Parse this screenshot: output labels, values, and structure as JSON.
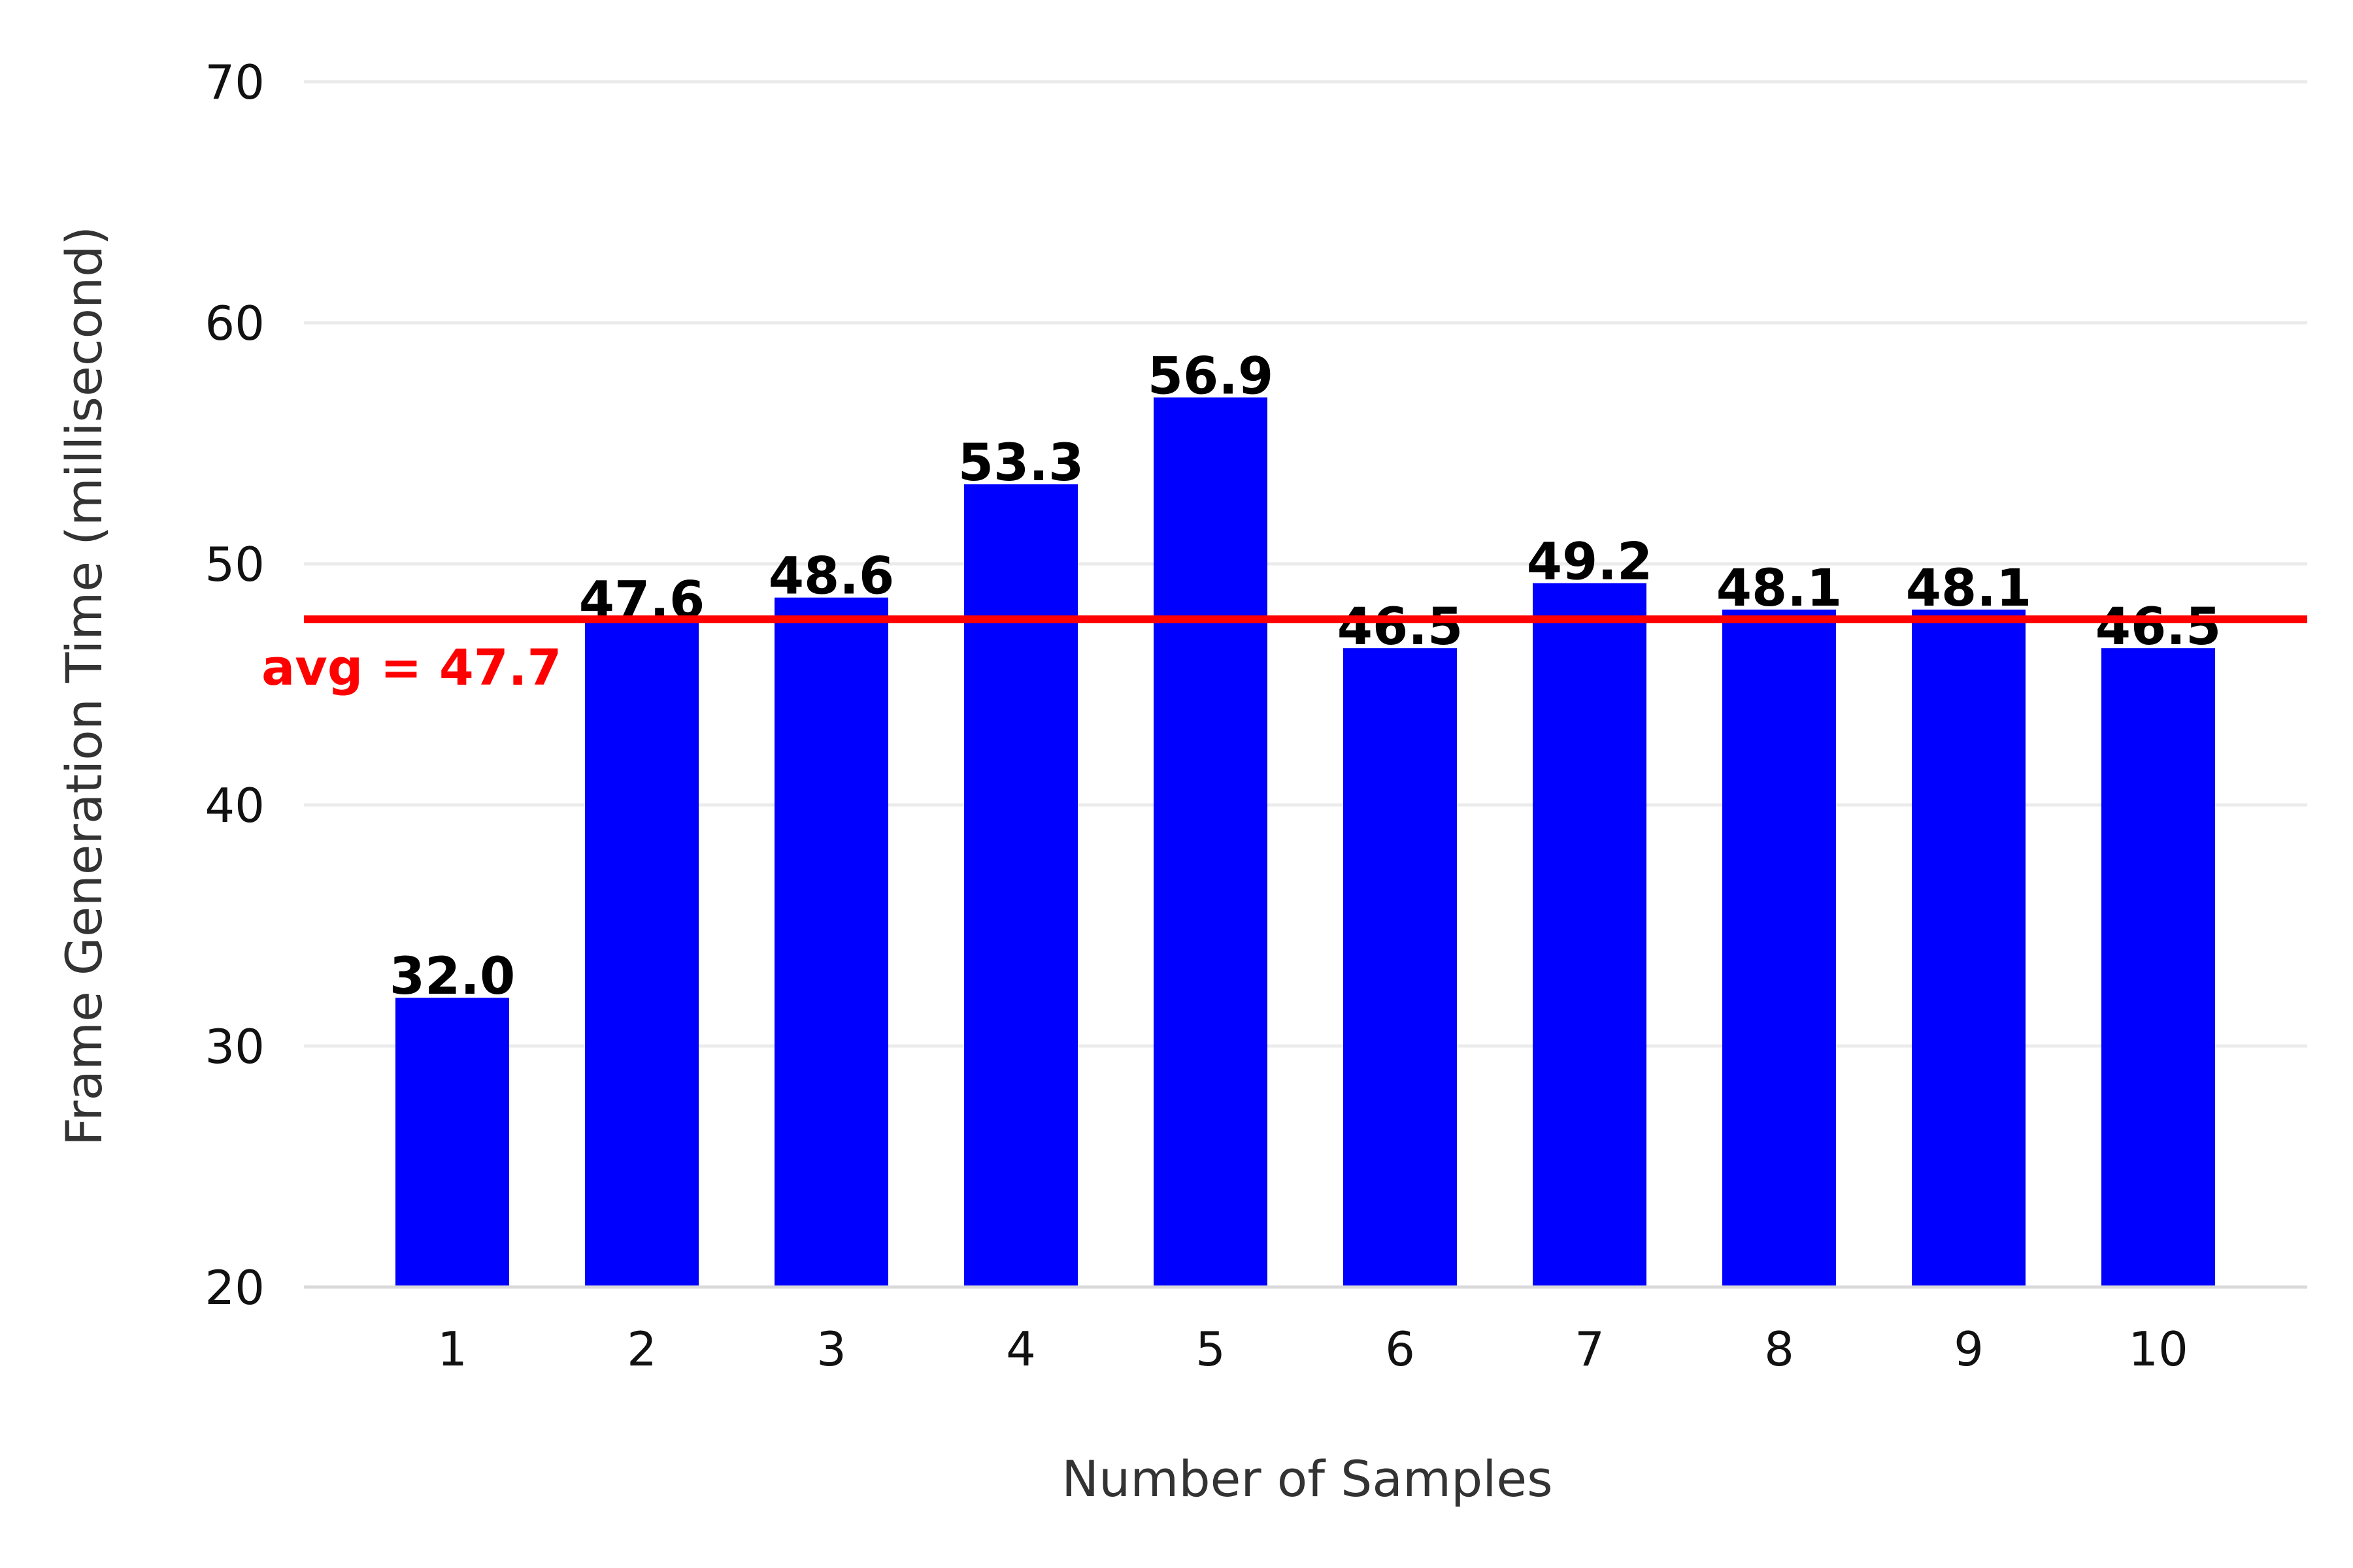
{
  "chart_data": {
    "type": "bar",
    "xlabel": "Number of Samples",
    "ylabel": "Frame Generation Time (millisecond)",
    "categories": [
      "1",
      "2",
      "3",
      "4",
      "5",
      "6",
      "7",
      "8",
      "9",
      "10"
    ],
    "values": [
      32.0,
      47.6,
      48.6,
      53.3,
      56.9,
      46.5,
      49.2,
      48.1,
      48.1,
      46.5
    ],
    "data_labels": [
      "32.0",
      "47.6",
      "48.6",
      "53.3",
      "56.9",
      "46.5",
      "49.2",
      "48.1",
      "48.1",
      "46.5"
    ],
    "ylim": [
      20,
      70
    ],
    "yticks": [
      20,
      30,
      40,
      50,
      60,
      70
    ],
    "ytick_labels": [
      "20",
      "30",
      "40",
      "50",
      "60",
      "70"
    ],
    "grid": true,
    "reference_line": {
      "value": 47.7,
      "label": "avg = 47.7",
      "color": "#ff0000"
    },
    "colors": {
      "bar": "#0000ff",
      "grid": "#ebebeb",
      "axis_line": "#d9d9d9"
    }
  }
}
